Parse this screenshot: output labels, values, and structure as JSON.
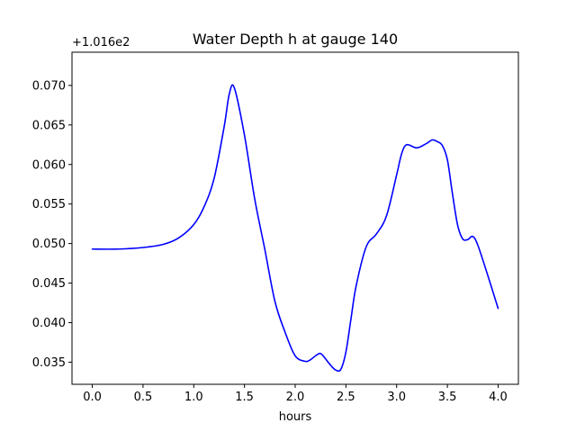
{
  "chart_data": {
    "type": "line",
    "title": "Water Depth h at gauge 140",
    "xlabel": "hours",
    "ylabel": "",
    "y_offset_label": "+1.016e2",
    "x_ticks": [
      "0.0",
      "0.5",
      "1.0",
      "1.5",
      "2.0",
      "2.5",
      "3.0",
      "3.5",
      "4.0"
    ],
    "y_ticks": [
      "0.035",
      "0.040",
      "0.045",
      "0.050",
      "0.055",
      "0.060",
      "0.065",
      "0.070"
    ],
    "xlim": [
      -0.2,
      4.2
    ],
    "ylim": [
      0.0322,
      0.0742
    ],
    "grid": false,
    "legend": "none",
    "series": [
      {
        "color": "#0000ff",
        "x": [
          0.0,
          0.25,
          0.5,
          0.7,
          0.85,
          1.0,
          1.1,
          1.2,
          1.3,
          1.35,
          1.4,
          1.5,
          1.6,
          1.7,
          1.8,
          1.9,
          2.0,
          2.1,
          2.15,
          2.2,
          2.25,
          2.3,
          2.35,
          2.4,
          2.45,
          2.5,
          2.55,
          2.6,
          2.7,
          2.8,
          2.9,
          3.0,
          3.05,
          3.1,
          3.2,
          3.3,
          3.35,
          3.4,
          3.45,
          3.5,
          3.55,
          3.6,
          3.65,
          3.7,
          3.75,
          3.8,
          3.9,
          4.0
        ],
        "y": [
          0.0493,
          0.0493,
          0.0495,
          0.0499,
          0.0507,
          0.0524,
          0.0546,
          0.0582,
          0.0648,
          0.0689,
          0.0697,
          0.0637,
          0.0557,
          0.0493,
          0.0427,
          0.0388,
          0.0358,
          0.0351,
          0.0353,
          0.0358,
          0.0361,
          0.0354,
          0.0346,
          0.034,
          0.0341,
          0.0363,
          0.0405,
          0.0446,
          0.0496,
          0.0512,
          0.0535,
          0.0587,
          0.0614,
          0.0625,
          0.0621,
          0.0627,
          0.0631,
          0.0629,
          0.0624,
          0.0606,
          0.0563,
          0.0524,
          0.0506,
          0.0505,
          0.0509,
          0.0498,
          0.0459,
          0.0418
        ]
      }
    ]
  }
}
